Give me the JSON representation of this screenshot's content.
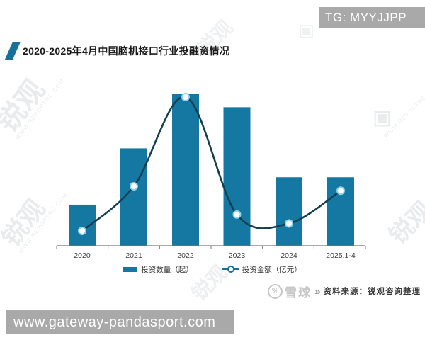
{
  "banner_top": {
    "text": "TG: MYYJJPP"
  },
  "title": {
    "text": "2020-2025年4月中国脑机接口行业投融资情况"
  },
  "chart_data": {
    "type": "bar+line",
    "title": "2020-2025年4月中国脑机接口行业投融资情况",
    "categories": [
      "2020",
      "2021",
      "2022",
      "2023",
      "2024",
      "2025.1-4"
    ],
    "series": [
      {
        "name": "投资数量（起）",
        "type": "bar",
        "values_pct_of_max": [
          27,
          64,
          100,
          91,
          45,
          45
        ]
      },
      {
        "name": "投资金额（亿元）",
        "type": "line",
        "values_pct_of_max": [
          10,
          40,
          100,
          21,
          15,
          37
        ]
      }
    ],
    "note": "no numeric y-axis, gridlines or data labels shown; values estimated as % of 2022 maximum from pixel heights",
    "legend_position": "bottom",
    "colors": {
      "bar": "#1478a3",
      "line": "#143f50",
      "marker_fill": "#ffffff",
      "marker_stroke": "#8ad2ec",
      "axis": "#777777",
      "tick_label": "#3c3c3c"
    }
  },
  "legend": {
    "items": [
      {
        "label": "投资数量（起）",
        "type": "bar"
      },
      {
        "label": "投资金额（亿元）",
        "type": "line"
      }
    ]
  },
  "source": {
    "xueqiu_logo_glyph": "%",
    "xueqiu_text": "雪球",
    "chevrons": "»",
    "text": "资料来源：锐观咨询整理"
  },
  "banner_bottom": {
    "text": "www.gateway-pandasport.com"
  },
  "watermarks": {
    "brand": "锐观",
    "url": "WWW.REPORTRC.COM",
    "diamond": "◈"
  }
}
